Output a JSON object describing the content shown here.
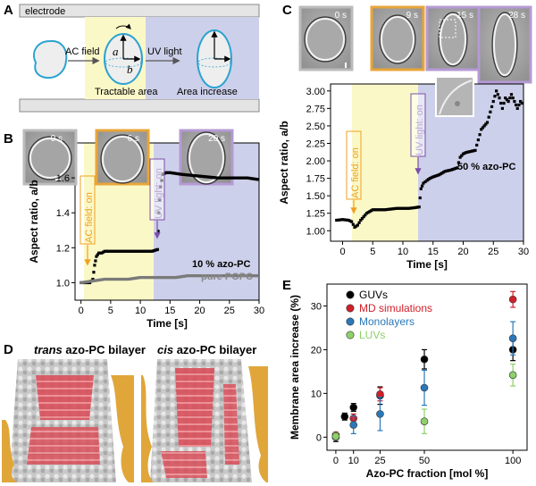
{
  "panel_a": {
    "label": "A",
    "electrode": "electrode",
    "ac_field": "AC field",
    "uv_light": "UV light",
    "tractable_area": "Tractable area",
    "area_increase": "Area increase",
    "axis_a": "a",
    "axis_b": "b"
  },
  "panel_b": {
    "label": "B",
    "img_times": [
      "0 s",
      "6 s",
      "20 s"
    ],
    "ac_on": "AC field: on",
    "uv_on": "UV light: on",
    "series_label_1": "10 % azo-PC",
    "series_label_2": "pure POPC"
  },
  "panel_c": {
    "label": "C",
    "img_times": [
      "0 s",
      "9 s",
      "15 s",
      "28 s"
    ],
    "ac_on": "AC field: on",
    "uv_on": "UV light: on",
    "series_label": "50 % azo-PC"
  },
  "panel_d": {
    "label": "D",
    "trans_word": "trans",
    "trans_rest": " azo-PC bilayer",
    "cis_word": "cis",
    "cis_rest": " azo-PC bilayer"
  },
  "panel_e": {
    "label": "E"
  },
  "colors": {
    "ac_region": "#fbf8c8",
    "uv_region": "#cdd0ea",
    "ac_arrow": "#f0a020",
    "uv_arrow": "#7a4fa8",
    "gvu": "#000000",
    "md": "#d0202a",
    "mono": "#2a78b8",
    "luv": "#8ed06a"
  },
  "chart_data": [
    {
      "id": "B",
      "type": "scatter",
      "title": "",
      "xlabel": "Time [s]",
      "ylabel": "Aspect ratio, a/b",
      "xlim": [
        -1,
        30
      ],
      "ylim": [
        0.9,
        1.8
      ],
      "xticks": [
        0,
        5,
        10,
        15,
        20,
        25,
        30
      ],
      "yticks": [
        1.0,
        1.2,
        1.4,
        1.6
      ],
      "ytick_labels": [
        "1.0",
        "1.2",
        "1.4",
        "1.6"
      ],
      "regions": [
        {
          "name": "AC field",
          "x": [
            2,
            13
          ]
        },
        {
          "name": "UV light",
          "x": [
            13,
            30
          ]
        }
      ],
      "series": [
        {
          "name": "10 % azo-PC",
          "color": "#000000",
          "x": [
            0,
            1,
            1.5,
            2,
            2.3,
            2.6,
            3,
            3.5,
            4,
            5,
            6,
            7,
            8,
            9,
            10,
            11,
            12,
            12.9,
            13.1,
            13.4,
            13.8,
            14.3,
            15,
            17,
            20,
            23,
            26,
            28,
            30
          ],
          "y": [
            1.0,
            1.0,
            1.0,
            1.02,
            1.1,
            1.15,
            1.17,
            1.17,
            1.18,
            1.18,
            1.18,
            1.18,
            1.18,
            1.18,
            1.18,
            1.18,
            1.18,
            1.19,
            1.4,
            1.55,
            1.62,
            1.63,
            1.63,
            1.62,
            1.61,
            1.6,
            1.6,
            1.6,
            1.59
          ]
        },
        {
          "name": "pure POPC",
          "color": "#7a7a7a",
          "x": [
            0,
            2,
            4,
            6,
            8,
            10,
            12,
            14,
            16,
            18,
            20,
            22,
            24,
            26,
            28,
            30
          ],
          "y": [
            1.0,
            1.01,
            1.02,
            1.02,
            1.02,
            1.03,
            1.03,
            1.03,
            1.03,
            1.04,
            1.04,
            1.04,
            1.04,
            1.04,
            1.04,
            1.04
          ]
        }
      ]
    },
    {
      "id": "C",
      "type": "scatter",
      "title": "",
      "xlabel": "Time [s]",
      "ylabel": "Aspect ratio, a/b",
      "xlim": [
        -2,
        30
      ],
      "ylim": [
        0.85,
        3.1
      ],
      "xticks": [
        0,
        5,
        10,
        15,
        20,
        25,
        30
      ],
      "yticks": [
        1.0,
        1.25,
        1.5,
        1.75,
        2.0,
        2.25,
        2.5,
        2.75,
        3.0
      ],
      "ytick_labels": [
        "1.00",
        "1.25",
        "1.50",
        "1.75",
        "2.00",
        "2.25",
        "2.50",
        "2.75",
        "3.00"
      ],
      "regions": [
        {
          "name": "AC field",
          "x": [
            2,
            12.8
          ]
        },
        {
          "name": "UV light",
          "x": [
            12.8,
            30
          ]
        }
      ],
      "series": [
        {
          "name": "50 % azo-PC",
          "color": "#000000",
          "x": [
            -1,
            0,
            1,
            1.5,
            2,
            2.5,
            3,
            3.5,
            4,
            5,
            6,
            7,
            8,
            9,
            10,
            11,
            12,
            12.7,
            13,
            13.4,
            14,
            14.5,
            15,
            16,
            17,
            18,
            19,
            19.5,
            20,
            20.5,
            21,
            22,
            22.5,
            23,
            23.5,
            24,
            24.5,
            25,
            25.5,
            26,
            26.5,
            27,
            27.5,
            28,
            28.5,
            29,
            29.5,
            30
          ],
          "y": [
            1.15,
            1.16,
            1.15,
            1.13,
            1.05,
            1.08,
            1.15,
            1.2,
            1.25,
            1.3,
            1.3,
            1.3,
            1.31,
            1.32,
            1.32,
            1.32,
            1.33,
            1.34,
            1.6,
            1.68,
            1.72,
            1.75,
            1.77,
            1.8,
            1.85,
            1.87,
            1.9,
            2.05,
            2.1,
            2.12,
            2.13,
            2.15,
            2.3,
            2.45,
            2.5,
            2.55,
            2.7,
            2.85,
            3.0,
            2.9,
            2.75,
            2.9,
            2.85,
            2.95,
            2.85,
            2.75,
            2.85,
            2.8
          ]
        }
      ]
    },
    {
      "id": "E",
      "type": "scatter",
      "title": "",
      "xlabel": "Azo-PC fraction [mol %]",
      "ylabel": "Membrane area increase (%)",
      "xlim": [
        -5,
        108
      ],
      "ylim": [
        -3,
        35
      ],
      "xticks": [
        0,
        10,
        25,
        50,
        100
      ],
      "yticks": [
        0,
        10,
        20,
        30
      ],
      "legend": "top-left",
      "series": [
        {
          "name": "GUVs",
          "color": "#000000",
          "x": [
            0,
            5,
            10,
            25,
            50,
            100
          ],
          "y": [
            0.0,
            4.7,
            6.8,
            9.5,
            17.8,
            20.0
          ],
          "err": [
            1.0,
            0.8,
            0.9,
            2.0,
            2.2,
            2.5
          ]
        },
        {
          "name": "MD simulations",
          "color": "#d0202a",
          "x": [
            0,
            10,
            25,
            100
          ],
          "y": [
            0.5,
            4.3,
            9.8,
            31.5
          ],
          "err": [
            0.6,
            1.0,
            1.5,
            1.8
          ]
        },
        {
          "name": "Monolayers",
          "color": "#2a78b8",
          "x": [
            0,
            10,
            25,
            50,
            100
          ],
          "y": [
            0.0,
            2.8,
            5.3,
            11.3,
            22.6
          ],
          "err": [
            0.6,
            2.0,
            3.8,
            4.0,
            3.8
          ]
        },
        {
          "name": "LUVs",
          "color": "#8ed06a",
          "x": [
            0,
            50,
            100
          ],
          "y": [
            0.2,
            3.6,
            14.2
          ],
          "err": [
            0.8,
            2.8,
            2.5
          ]
        }
      ]
    }
  ]
}
